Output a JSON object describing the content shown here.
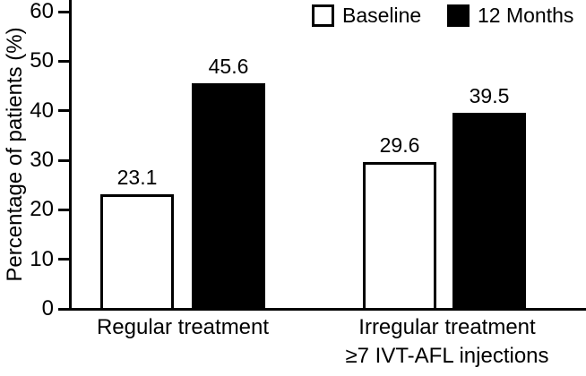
{
  "figure": {
    "background": "#ffffff",
    "foreground": "#000000"
  },
  "legend": {
    "items": [
      {
        "label": "Baseline",
        "swatch_color": "#ffffff"
      },
      {
        "label": "12 Months",
        "swatch_color": "#000000"
      }
    ]
  },
  "chart_data": {
    "type": "bar",
    "title": "",
    "xlabel": "",
    "ylabel": "Percentage of patients (%)",
    "ylim": [
      0,
      60
    ],
    "yticks": [
      0,
      10,
      20,
      30,
      40,
      50,
      60
    ],
    "grid": false,
    "legend_position": "top-right",
    "categories": [
      {
        "label": "Regular treatment",
        "sublabel": ""
      },
      {
        "label": "Irregular treatment",
        "sublabel": "≥7 IVT-AFL injections"
      }
    ],
    "series": [
      {
        "name": "Baseline",
        "fill": "#ffffff",
        "values": [
          23.1,
          29.6
        ]
      },
      {
        "name": "12 Months",
        "fill": "#000000",
        "values": [
          45.6,
          39.5
        ]
      }
    ]
  }
}
